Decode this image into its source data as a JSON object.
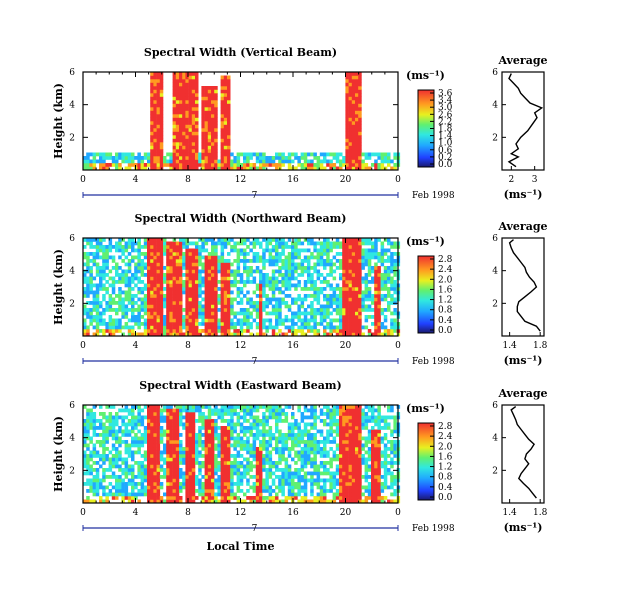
{
  "chart_data": [
    {
      "type": "heatmap",
      "title": "Spectral Width (Vertical Beam)",
      "ylabel": "Height (km)",
      "x_ticks": [
        "0",
        "4",
        "8",
        "12",
        "16",
        "20",
        "0"
      ],
      "y_ticks": [
        "6",
        "4",
        "2"
      ],
      "xlim": [
        0,
        24
      ],
      "ylim": [
        0,
        6
      ],
      "date_label": "7",
      "date_suffix": "Feb 1998",
      "colorbar": {
        "label": "(ms⁻¹)",
        "ticks": [
          "3.6",
          "3.4",
          "3.0",
          "2.6",
          "2.2",
          "1.8",
          "1.4",
          "1.0",
          "0.6",
          "0.2",
          "0.0"
        ]
      },
      "high_value_bands": [
        {
          "start": 4.9,
          "end": 6.0,
          "top": 5.8
        },
        {
          "start": 6.6,
          "end": 8.6,
          "top": 6.0
        },
        {
          "start": 9.0,
          "end": 10.0,
          "top": 5.0
        },
        {
          "start": 10.4,
          "end": 11.2,
          "top": 5.7
        },
        {
          "start": 19.8,
          "end": 21.2,
          "top": 6.0
        }
      ],
      "background_depth": 0.9,
      "noise": 0.25,
      "average_profile": {
        "title": "Average",
        "xlabel": "(ms⁻¹)",
        "x_ticks": [
          "2",
          "3"
        ],
        "xlim": [
          1.6,
          3.4
        ],
        "y_ticks": [
          "6",
          "4",
          "2"
        ],
        "height": [
          0.2,
          0.5,
          0.8,
          1.0,
          1.3,
          1.6,
          2.0,
          2.4,
          2.8,
          3.2,
          3.5,
          3.8,
          4.1,
          4.4,
          4.7,
          5.0,
          5.3,
          5.6,
          5.9
        ],
        "value": [
          2.2,
          1.9,
          2.3,
          2.0,
          2.3,
          2.2,
          2.4,
          2.7,
          2.9,
          3.1,
          3.0,
          3.3,
          2.8,
          2.6,
          2.4,
          2.3,
          2.1,
          1.9,
          2.0
        ]
      }
    },
    {
      "type": "heatmap",
      "title": "Spectral Width (Northward Beam)",
      "ylabel": "Height (km)",
      "x_ticks": [
        "0",
        "4",
        "8",
        "12",
        "16",
        "20",
        "0"
      ],
      "y_ticks": [
        "6",
        "4",
        "2"
      ],
      "xlim": [
        0,
        24
      ],
      "ylim": [
        0,
        6
      ],
      "date_label": "7",
      "date_suffix": "Feb 1998",
      "colorbar": {
        "label": "(ms⁻¹)",
        "ticks": [
          "2.8",
          "2.4",
          "2.0",
          "1.6",
          "1.2",
          "0.8",
          "0.4",
          "0.0"
        ]
      },
      "high_value_bands": [
        {
          "start": 4.8,
          "end": 6.0,
          "top": 6.0
        },
        {
          "start": 6.3,
          "end": 7.4,
          "top": 5.6
        },
        {
          "start": 7.7,
          "end": 8.6,
          "top": 5.3
        },
        {
          "start": 9.2,
          "end": 10.0,
          "top": 4.8
        },
        {
          "start": 10.4,
          "end": 11.1,
          "top": 4.5
        },
        {
          "start": 13.2,
          "end": 13.6,
          "top": 3.2
        },
        {
          "start": 19.6,
          "end": 21.0,
          "top": 6.0
        },
        {
          "start": 22.0,
          "end": 22.6,
          "top": 4.2
        }
      ],
      "background_depth": 6.0,
      "noise": 0.3,
      "average_profile": {
        "title": "Average",
        "xlabel": "(ms⁻¹)",
        "x_ticks": [
          "1.4",
          "1.8"
        ],
        "xlim": [
          1.3,
          1.85
        ],
        "y_ticks": [
          "6",
          "4",
          "2"
        ],
        "height": [
          0.3,
          0.6,
          0.9,
          1.2,
          1.5,
          1.8,
          2.1,
          2.4,
          2.7,
          3.0,
          3.3,
          3.6,
          3.9,
          4.2,
          4.5,
          4.8,
          5.1,
          5.4,
          5.7,
          5.9
        ],
        "value": [
          1.8,
          1.75,
          1.6,
          1.55,
          1.5,
          1.5,
          1.52,
          1.6,
          1.68,
          1.75,
          1.72,
          1.66,
          1.62,
          1.6,
          1.55,
          1.5,
          1.45,
          1.42,
          1.4,
          1.45
        ]
      }
    },
    {
      "type": "heatmap",
      "title": "Spectral Width (Eastward Beam)",
      "ylabel": "Height (km)",
      "x_ticks": [
        "0",
        "4",
        "8",
        "12",
        "16",
        "20",
        "0"
      ],
      "y_ticks": [
        "6",
        "4",
        "2"
      ],
      "xlim": [
        0,
        24
      ],
      "ylim": [
        0,
        6
      ],
      "date_label": "7",
      "date_suffix": "Feb 1998",
      "xlabel": "Local Time",
      "colorbar": {
        "label": "(ms⁻¹)",
        "ticks": [
          "2.8",
          "2.4",
          "2.0",
          "1.6",
          "1.2",
          "0.8",
          "0.4",
          "0.0"
        ]
      },
      "high_value_bands": [
        {
          "start": 4.8,
          "end": 5.8,
          "top": 6.0
        },
        {
          "start": 6.2,
          "end": 7.3,
          "top": 5.7
        },
        {
          "start": 7.6,
          "end": 8.4,
          "top": 5.4
        },
        {
          "start": 9.1,
          "end": 9.9,
          "top": 5.0
        },
        {
          "start": 10.3,
          "end": 11.0,
          "top": 4.6
        },
        {
          "start": 13.1,
          "end": 13.5,
          "top": 3.4
        },
        {
          "start": 19.4,
          "end": 21.0,
          "top": 6.0
        },
        {
          "start": 21.8,
          "end": 22.5,
          "top": 4.5
        }
      ],
      "background_depth": 6.0,
      "noise": 0.3,
      "average_profile": {
        "title": "Average",
        "xlabel": "(ms⁻¹)",
        "x_ticks": [
          "1.4",
          "1.8"
        ],
        "xlim": [
          1.3,
          1.85
        ],
        "y_ticks": [
          "6",
          "4",
          "2"
        ],
        "height": [
          0.3,
          0.6,
          0.9,
          1.2,
          1.5,
          1.8,
          2.1,
          2.4,
          2.7,
          3.0,
          3.3,
          3.6,
          3.9,
          4.2,
          4.5,
          4.8,
          5.1,
          5.4,
          5.7,
          5.9
        ],
        "value": [
          1.75,
          1.7,
          1.65,
          1.58,
          1.52,
          1.55,
          1.6,
          1.65,
          1.6,
          1.62,
          1.68,
          1.72,
          1.65,
          1.6,
          1.55,
          1.5,
          1.48,
          1.45,
          1.42,
          1.48
        ]
      }
    }
  ]
}
